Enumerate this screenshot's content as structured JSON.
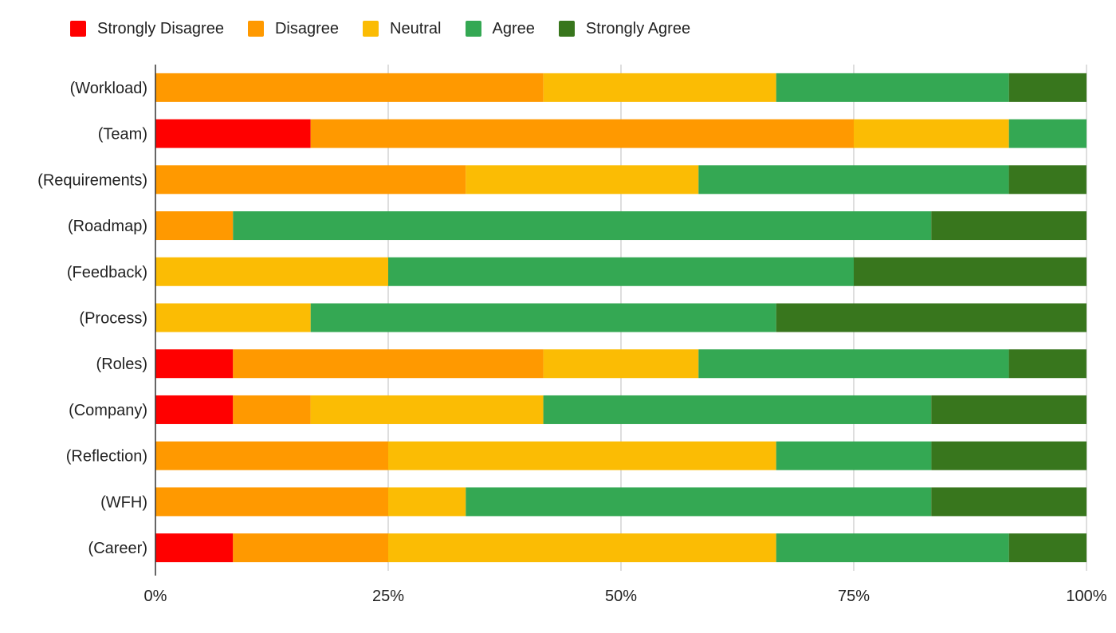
{
  "chart_data": {
    "type": "bar",
    "orientation": "horizontal",
    "stacking": "percent",
    "title": "",
    "xlabel": "",
    "ylabel": "",
    "xlim": [
      0,
      100
    ],
    "x_ticks": [
      "0%",
      "25%",
      "50%",
      "75%",
      "100%"
    ],
    "grid": "vertical",
    "legend_position": "top-left",
    "categories": [
      "(Workload)",
      "(Team)",
      "(Requirements)",
      "(Roadmap)",
      "(Feedback)",
      "(Process)",
      "(Roles)",
      "(Company)",
      "(Reflection)",
      "(WFH)",
      "(Career)"
    ],
    "series": [
      {
        "name": "Strongly Disagree",
        "color": "#ff0000",
        "values": [
          0,
          16.67,
          0,
          0,
          0,
          0,
          8.33,
          8.33,
          0,
          0,
          8.33
        ]
      },
      {
        "name": "Disagree",
        "color": "#ff9900",
        "values": [
          41.67,
          58.33,
          33.33,
          8.33,
          0,
          0,
          33.33,
          8.33,
          25,
          25,
          16.67
        ]
      },
      {
        "name": "Neutral",
        "color": "#fbbc04",
        "values": [
          25,
          16.67,
          25,
          0,
          25,
          16.67,
          16.67,
          25,
          41.67,
          8.33,
          41.67
        ]
      },
      {
        "name": "Agree",
        "color": "#34a853",
        "values": [
          25,
          8.33,
          33.33,
          75,
          50,
          50,
          33.33,
          41.67,
          16.67,
          50,
          25
        ]
      },
      {
        "name": "Strongly Agree",
        "color": "#38761d",
        "values": [
          8.33,
          0,
          8.33,
          16.67,
          25,
          33.33,
          8.33,
          16.67,
          16.67,
          16.67,
          8.33
        ]
      }
    ]
  }
}
